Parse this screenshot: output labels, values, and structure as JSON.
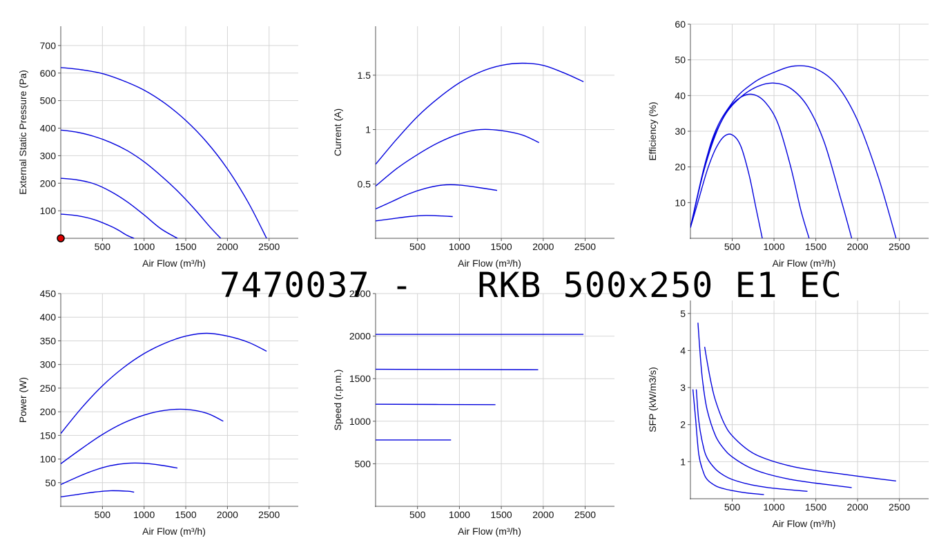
{
  "title": "7470037 -   RKB 500x250 E1 EC",
  "colors": {
    "curve": "#0000dd",
    "grid": "#d4d4d4",
    "marker": "#dd0000"
  },
  "chart_data": [
    {
      "id": "pressure",
      "type": "line",
      "xlabel": "Air Flow (m³/h)",
      "ylabel": "External Static Pressure (Pa)",
      "xlim": [
        0,
        2850
      ],
      "ylim": [
        0,
        770
      ],
      "xticks": [
        500,
        1000,
        1500,
        2000,
        2500
      ],
      "yticks": [
        100,
        200,
        300,
        400,
        500,
        600,
        700
      ],
      "grid": true,
      "marker": {
        "x": 0,
        "y": 0
      },
      "series": [
        {
          "x": [
            0,
            200,
            400,
            600,
            700,
            800,
            880
          ],
          "y": [
            88,
            82,
            68,
            44,
            28,
            10,
            0
          ]
        },
        {
          "x": [
            0,
            200,
            400,
            600,
            800,
            1000,
            1200,
            1400
          ],
          "y": [
            218,
            212,
            198,
            170,
            132,
            85,
            35,
            0
          ]
        },
        {
          "x": [
            0,
            200,
            400,
            600,
            800,
            1000,
            1200,
            1400,
            1600,
            1800,
            1920
          ],
          "y": [
            393,
            385,
            370,
            348,
            318,
            278,
            228,
            172,
            108,
            38,
            0
          ]
        },
        {
          "x": [
            0,
            250,
            500,
            750,
            1000,
            1250,
            1500,
            1750,
            2000,
            2250,
            2470
          ],
          "y": [
            620,
            612,
            598,
            572,
            538,
            490,
            428,
            350,
            252,
            130,
            0
          ]
        }
      ]
    },
    {
      "id": "current",
      "type": "line",
      "xlabel": "Air Flow (m³/h)",
      "ylabel": "Current (A)",
      "xlim": [
        0,
        2850
      ],
      "ylim": [
        0,
        1.95
      ],
      "xticks": [
        500,
        1000,
        1500,
        2000,
        2500
      ],
      "yticks": [
        0.5,
        1,
        1.5
      ],
      "ytick_labels": [
        "0.5",
        "1",
        "1.5"
      ],
      "grid": true,
      "series": [
        {
          "x": [
            0,
            200,
            400,
            600,
            800,
            920
          ],
          "y": [
            0.16,
            0.18,
            0.2,
            0.21,
            0.205,
            0.2
          ]
        },
        {
          "x": [
            0,
            200,
            400,
            600,
            800,
            1000,
            1200,
            1450
          ],
          "y": [
            0.27,
            0.34,
            0.41,
            0.46,
            0.49,
            0.49,
            0.47,
            0.44
          ]
        },
        {
          "x": [
            0,
            250,
            500,
            750,
            1000,
            1250,
            1500,
            1750,
            1950
          ],
          "y": [
            0.48,
            0.64,
            0.77,
            0.88,
            0.96,
            1.0,
            0.99,
            0.95,
            0.88
          ]
        },
        {
          "x": [
            0,
            250,
            500,
            750,
            1000,
            1250,
            1500,
            1750,
            2000,
            2250,
            2480
          ],
          "y": [
            0.68,
            0.91,
            1.12,
            1.29,
            1.43,
            1.53,
            1.59,
            1.61,
            1.59,
            1.52,
            1.44
          ]
        }
      ]
    },
    {
      "id": "efficiency",
      "type": "line",
      "xlabel": "Air Flow (m³/h)",
      "ylabel": "Efficiency (%)",
      "xlim": [
        0,
        2850
      ],
      "ylim": [
        0,
        60
      ],
      "xticks": [
        500,
        1000,
        1500,
        2000,
        2500
      ],
      "yticks": [
        10,
        20,
        30,
        40,
        50,
        60
      ],
      "grid": true,
      "series": [
        {
          "x": [
            0,
            100,
            200,
            300,
            400,
            500,
            600,
            700,
            780,
            860
          ],
          "y": [
            3,
            11,
            19,
            25,
            28.5,
            29,
            26,
            18,
            9,
            0
          ]
        },
        {
          "x": [
            0,
            150,
            300,
            450,
            600,
            750,
            900,
            1050,
            1200,
            1320,
            1420
          ],
          "y": [
            3,
            18,
            29,
            36,
            39.5,
            40.3,
            38,
            32,
            20,
            8,
            0
          ]
        },
        {
          "x": [
            0,
            200,
            400,
            600,
            800,
            1000,
            1200,
            1400,
            1600,
            1800,
            1930
          ],
          "y": [
            3,
            23,
            34,
            39.5,
            42.5,
            43.5,
            42,
            37,
            27,
            11,
            0
          ]
        },
        {
          "x": [
            0,
            250,
            500,
            750,
            1000,
            1250,
            1500,
            1750,
            2000,
            2250,
            2460
          ],
          "y": [
            3,
            27,
            38,
            43.5,
            46.5,
            48.3,
            47.5,
            43,
            33,
            17,
            0
          ]
        }
      ]
    },
    {
      "id": "power",
      "type": "line",
      "xlabel": "Air Flow (m³/h)",
      "ylabel": "Power (W)",
      "xlim": [
        0,
        2850
      ],
      "ylim": [
        0,
        450
      ],
      "xticks": [
        500,
        1000,
        1500,
        2000,
        2500
      ],
      "yticks": [
        50,
        100,
        150,
        200,
        250,
        300,
        350,
        400,
        450
      ],
      "grid": true,
      "series": [
        {
          "x": [
            0,
            200,
            400,
            600,
            800,
            880
          ],
          "y": [
            20,
            25,
            30,
            33,
            32,
            30
          ]
        },
        {
          "x": [
            0,
            200,
            400,
            600,
            800,
            1000,
            1200,
            1400
          ],
          "y": [
            46,
            62,
            76,
            86,
            91,
            91,
            87,
            81
          ]
        },
        {
          "x": [
            0,
            250,
            500,
            750,
            1000,
            1250,
            1500,
            1750,
            1950
          ],
          "y": [
            90,
            122,
            152,
            176,
            193,
            203,
            205,
            197,
            180
          ]
        },
        {
          "x": [
            0,
            250,
            500,
            750,
            1000,
            1250,
            1500,
            1750,
            2000,
            2250,
            2470
          ],
          "y": [
            154,
            208,
            255,
            293,
            323,
            345,
            360,
            366,
            360,
            347,
            328
          ]
        }
      ]
    },
    {
      "id": "speed",
      "type": "line",
      "xlabel": "Air Flow (m³/h)",
      "ylabel": "Speed (r.p.m.)",
      "xlim": [
        0,
        2850
      ],
      "ylim": [
        0,
        2500
      ],
      "xticks": [
        500,
        1000,
        1500,
        2000,
        2500
      ],
      "yticks": [
        500,
        1000,
        1500,
        2000,
        2500
      ],
      "grid": true,
      "series": [
        {
          "x": [
            0,
            900
          ],
          "y": [
            780,
            780
          ]
        },
        {
          "x": [
            0,
            1430
          ],
          "y": [
            1200,
            1195
          ]
        },
        {
          "x": [
            0,
            1940
          ],
          "y": [
            1610,
            1605
          ]
        },
        {
          "x": [
            0,
            2480
          ],
          "y": [
            2020,
            2020
          ]
        }
      ]
    },
    {
      "id": "sfp",
      "type": "line",
      "xlabel": "Air Flow (m³/h)",
      "ylabel": "SFP (kW/m3/s)",
      "xlim": [
        0,
        2850
      ],
      "ylim": [
        0,
        5.35
      ],
      "xticks": [
        500,
        1000,
        1500,
        2000,
        2500
      ],
      "yticks": [
        1,
        2,
        3,
        4,
        5
      ],
      "grid": true,
      "series": [
        {
          "x": [
            30,
            60,
            100,
            150,
            200,
            300,
            400,
            500,
            600,
            700,
            880
          ],
          "y": [
            2.95,
            2.2,
            1.2,
            0.75,
            0.52,
            0.35,
            0.27,
            0.22,
            0.18,
            0.15,
            0.11
          ]
        },
        {
          "x": [
            70,
            100,
            150,
            200,
            300,
            400,
            500,
            700,
            900,
            1100,
            1400
          ],
          "y": [
            2.95,
            2.1,
            1.45,
            1.1,
            0.8,
            0.63,
            0.52,
            0.39,
            0.31,
            0.26,
            0.2
          ]
        },
        {
          "x": [
            90,
            120,
            150,
            200,
            300,
            400,
            500,
            700,
            900,
            1200,
            1500,
            1930
          ],
          "y": [
            4.75,
            3.8,
            3.1,
            2.4,
            1.7,
            1.35,
            1.13,
            0.85,
            0.68,
            0.52,
            0.42,
            0.3
          ]
        },
        {
          "x": [
            170,
            200,
            250,
            300,
            400,
            500,
            700,
            900,
            1200,
            1500,
            1800,
            2100,
            2460
          ],
          "y": [
            4.1,
            3.7,
            3.1,
            2.65,
            2.05,
            1.7,
            1.3,
            1.08,
            0.88,
            0.76,
            0.67,
            0.58,
            0.48
          ]
        }
      ]
    }
  ]
}
